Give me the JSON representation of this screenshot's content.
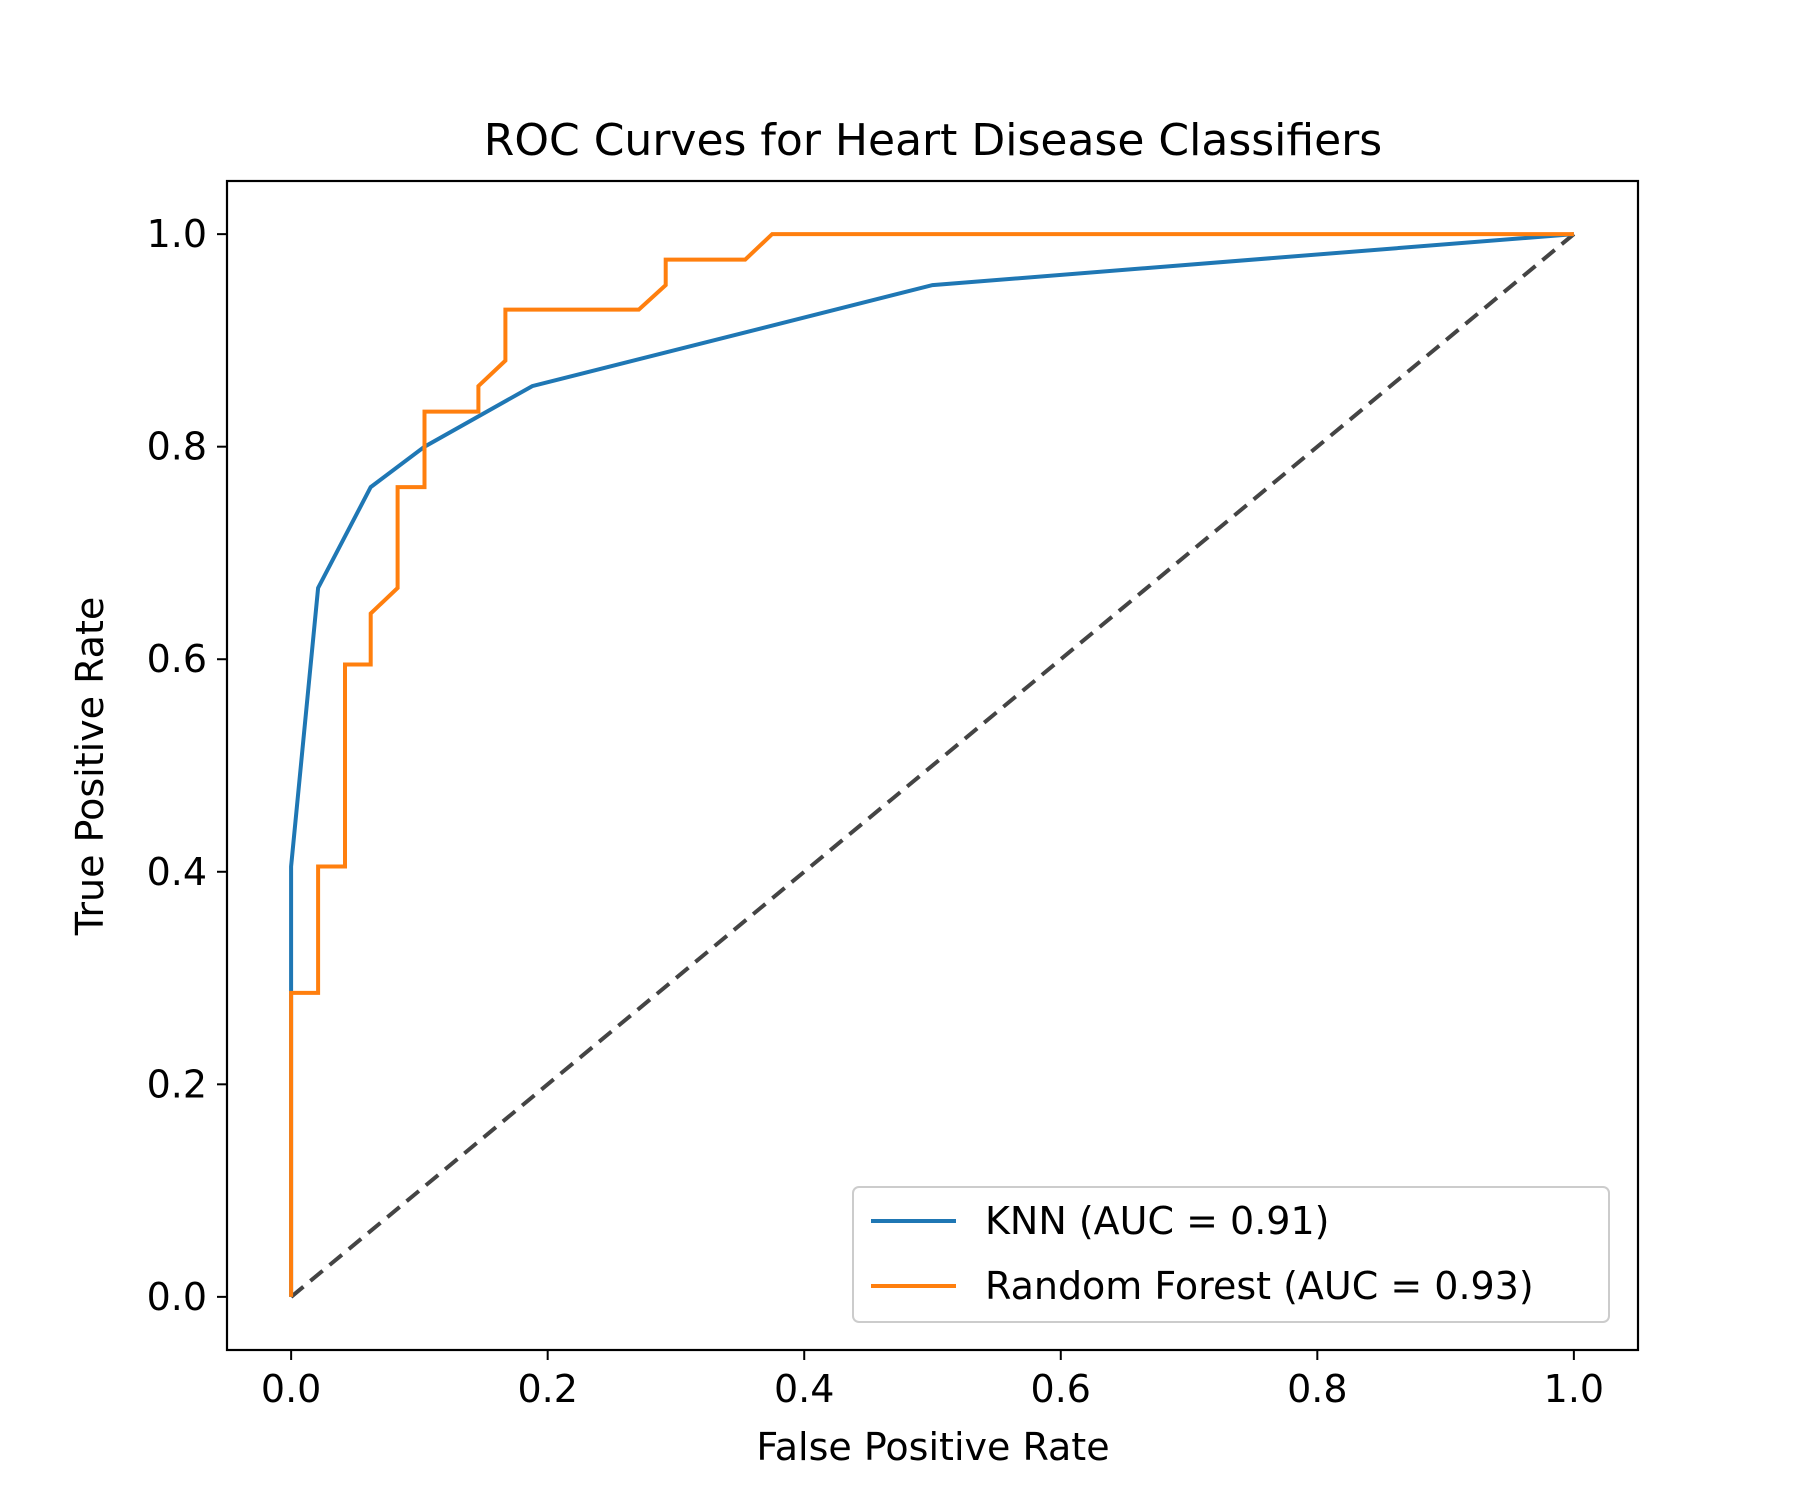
{
  "chart_data": {
    "type": "line",
    "title": "ROC Curves for Heart Disease Classifiers",
    "xlabel": "False Positive Rate",
    "ylabel": "True Positive Rate",
    "xlim": [
      -0.05,
      1.05
    ],
    "ylim": [
      -0.05,
      1.05
    ],
    "xticks": [
      0.0,
      0.2,
      0.4,
      0.6,
      0.8,
      1.0
    ],
    "yticks": [
      0.0,
      0.2,
      0.4,
      0.6,
      0.8,
      1.0
    ],
    "tick_labels": [
      "0.0",
      "0.2",
      "0.4",
      "0.6",
      "0.8",
      "1.0"
    ],
    "grid": false,
    "legend_position": "lower-right",
    "series": [
      {
        "name": "KNN (AUC = 0.91)",
        "color": "#1f77b4",
        "x": [
          0.0,
          0.0,
          0.0,
          0.021,
          0.062,
          0.104,
          0.188,
          0.5,
          1.0
        ],
        "y": [
          0.0,
          0.286,
          0.405,
          0.667,
          0.762,
          0.8,
          0.857,
          0.952,
          1.0
        ]
      },
      {
        "name": "Random Forest (AUC = 0.93)",
        "color": "#ff7f0e",
        "x": [
          0.0,
          0.0,
          0.021,
          0.021,
          0.042,
          0.042,
          0.062,
          0.062,
          0.083,
          0.083,
          0.104,
          0.104,
          0.146,
          0.146,
          0.167,
          0.167,
          0.271,
          0.292,
          0.292,
          0.354,
          0.375,
          1.0
        ],
        "y": [
          0.0,
          0.286,
          0.286,
          0.405,
          0.405,
          0.595,
          0.595,
          0.643,
          0.667,
          0.762,
          0.762,
          0.833,
          0.833,
          0.857,
          0.881,
          0.929,
          0.929,
          0.952,
          0.976,
          0.976,
          1.0,
          1.0
        ]
      }
    ],
    "reference_line": {
      "color": "#444444",
      "style": "dashed",
      "x": [
        0.0,
        1.0
      ],
      "y": [
        0.0,
        1.0
      ]
    }
  }
}
